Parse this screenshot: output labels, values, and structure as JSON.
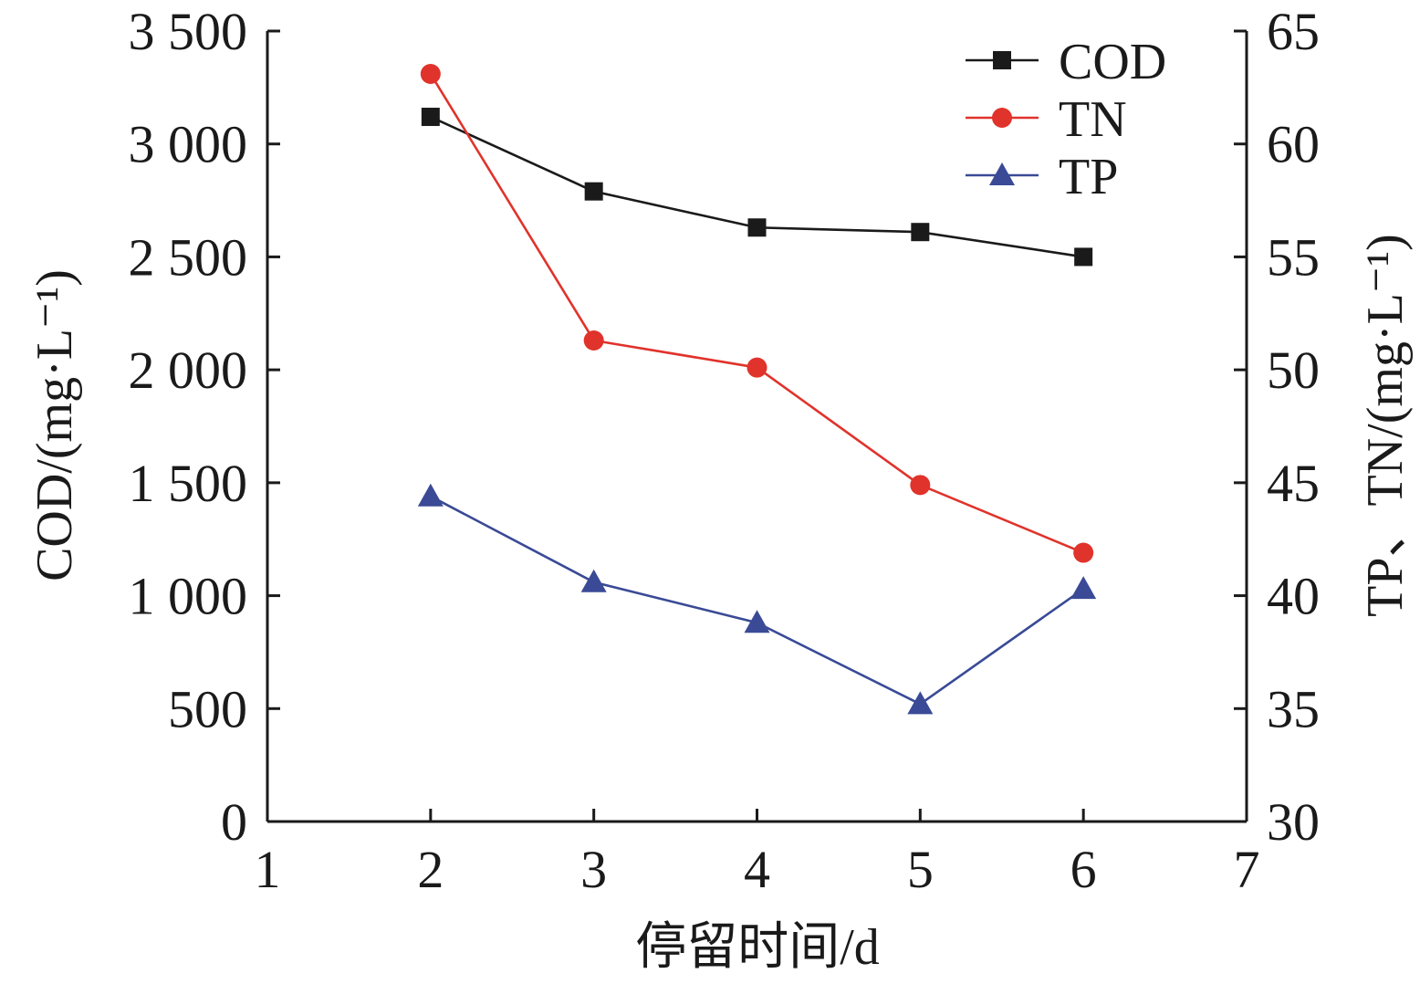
{
  "chart_data": {
    "type": "line",
    "xlabel": "停留时间/d",
    "ylabel_left": "COD/(mg·L⁻¹)",
    "ylabel_right": "TP、TN/(mg·L⁻¹)",
    "xlim": [
      1,
      7
    ],
    "x_ticks": [
      {
        "value": 1,
        "label": "1"
      },
      {
        "value": 2,
        "label": "2"
      },
      {
        "value": 3,
        "label": "3"
      },
      {
        "value": 4,
        "label": "4"
      },
      {
        "value": 5,
        "label": "5"
      },
      {
        "value": 6,
        "label": "6"
      },
      {
        "value": 7,
        "label": "7"
      }
    ],
    "ylim_left": [
      0,
      3500
    ],
    "y_ticks_left": [
      {
        "value": 0,
        "label": "0"
      },
      {
        "value": 500,
        "label": "500"
      },
      {
        "value": 1000,
        "label": "1 000"
      },
      {
        "value": 1500,
        "label": "1 500"
      },
      {
        "value": 2000,
        "label": "2 000"
      },
      {
        "value": 2500,
        "label": "2 500"
      },
      {
        "value": 3000,
        "label": "3 000"
      },
      {
        "value": 3500,
        "label": "3 500"
      }
    ],
    "ylim_right": [
      30,
      65
    ],
    "y_ticks_right": [
      {
        "value": 30,
        "label": "30"
      },
      {
        "value": 35,
        "label": "35"
      },
      {
        "value": 40,
        "label": "40"
      },
      {
        "value": 45,
        "label": "45"
      },
      {
        "value": 50,
        "label": "50"
      },
      {
        "value": 55,
        "label": "55"
      },
      {
        "value": 60,
        "label": "60"
      },
      {
        "value": 65,
        "label": "65"
      }
    ],
    "x": [
      2,
      3,
      4,
      5,
      6
    ],
    "series": [
      {
        "name": "COD",
        "axis": "left",
        "color": "#1a1a1a",
        "marker": "square",
        "values": [
          3120,
          2790,
          2630,
          2610,
          2500
        ]
      },
      {
        "name": "TN",
        "axis": "right",
        "color": "#e0332b",
        "marker": "circle",
        "values": [
          63.1,
          51.3,
          50.1,
          44.9,
          41.9
        ]
      },
      {
        "name": "TP",
        "axis": "right",
        "color": "#3a4a96",
        "marker": "triangle",
        "values": [
          44.4,
          40.6,
          38.8,
          35.2,
          40.3
        ]
      }
    ],
    "grid": false,
    "legend_position": "top-right"
  }
}
